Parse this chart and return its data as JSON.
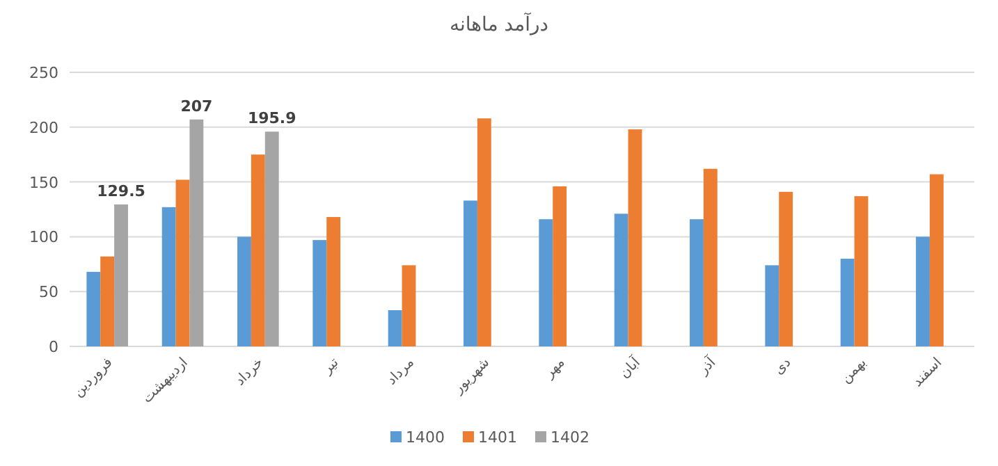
{
  "chart_data": {
    "type": "bar",
    "title": "درآمد ماهانه",
    "categories": [
      "فروردین",
      "اردیبهشت",
      "خرداد",
      "تیر",
      "مرداد",
      "شهریور",
      "مهر",
      "آبان",
      "آذر",
      "دی",
      "بهمن",
      "اسفند"
    ],
    "series": [
      {
        "name": "1400",
        "color": "#5b9bd5",
        "values": [
          68,
          127,
          100,
          97,
          33,
          133,
          116,
          121,
          116,
          74,
          80,
          100
        ]
      },
      {
        "name": "1401",
        "color": "#ed7d31",
        "values": [
          82,
          152,
          175,
          118,
          74,
          208,
          146,
          198,
          162,
          141,
          137,
          157
        ]
      },
      {
        "name": "1402",
        "color": "#a5a5a5",
        "values": [
          129.5,
          207,
          195.9,
          null,
          null,
          null,
          null,
          null,
          null,
          null,
          null,
          null
        ],
        "value_labels": [
          "129.5",
          "207",
          "195.9",
          null,
          null,
          null,
          null,
          null,
          null,
          null,
          null,
          null
        ]
      }
    ],
    "ylim": [
      0,
      250
    ],
    "yticks": [
      0,
      50,
      100,
      150,
      200,
      250
    ],
    "grid": "y",
    "legend": "bottom"
  }
}
